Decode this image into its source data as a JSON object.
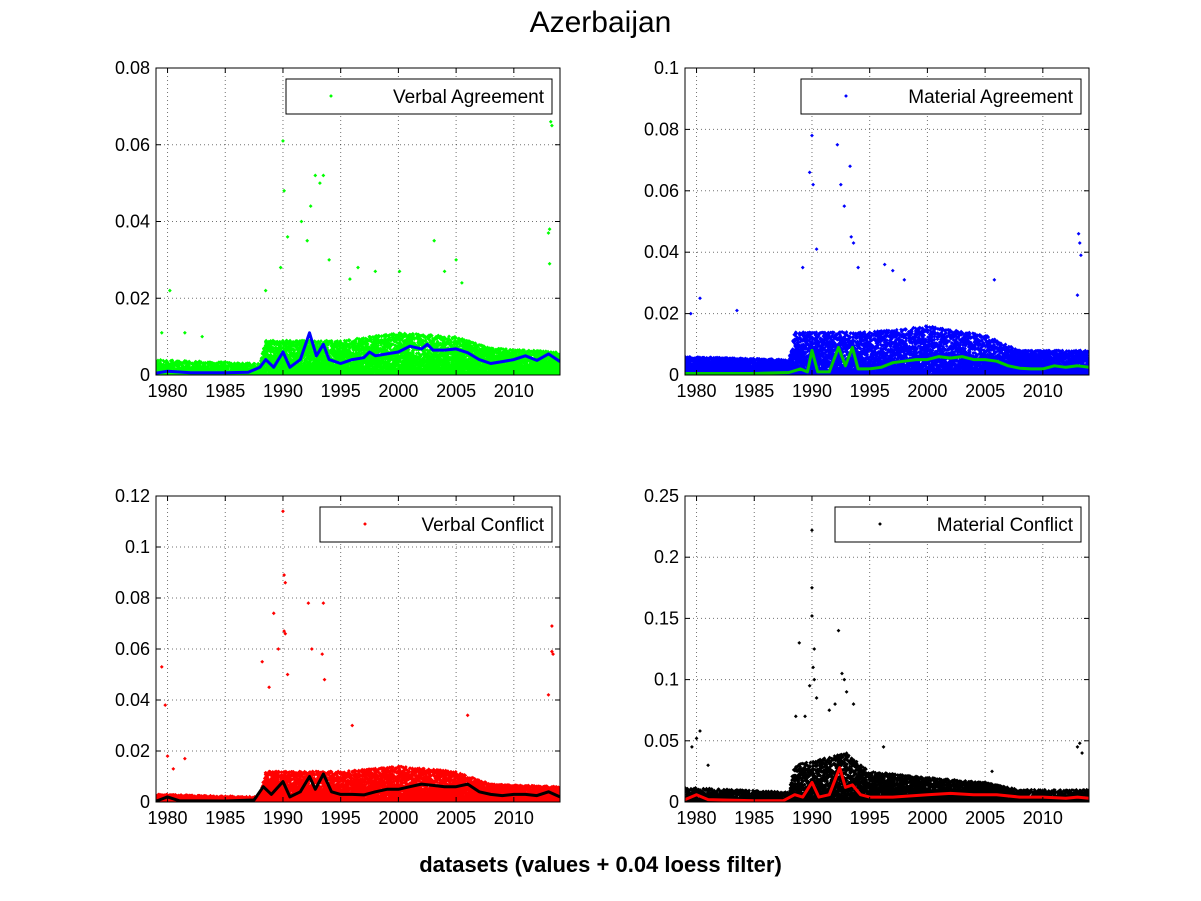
{
  "figure": {
    "title": "Azerbaijan",
    "footer": "datasets (values + 0.04 loess filter)"
  },
  "chart_data": [
    {
      "type": "scatter",
      "legend": "Verbal Agreement",
      "legend_placement": "top-right",
      "grid": true,
      "xlim": [
        1979,
        2014
      ],
      "ylim": [
        0,
        0.08
      ],
      "xticks": [
        1980,
        1985,
        1990,
        1995,
        2000,
        2005,
        2010
      ],
      "yticks": [
        0,
        0.02,
        0.04,
        0.06,
        0.08
      ],
      "ytick_labels": [
        "0",
        "0.02",
        "0.04",
        "0.06",
        "0.08"
      ],
      "marker_color": "#00ff00",
      "smooth_color": "#0000ff",
      "background_level": [
        [
          1979,
          0.004
        ],
        [
          1988,
          0.003
        ],
        [
          1988.5,
          0.009
        ],
        [
          1995,
          0.009
        ],
        [
          2000,
          0.011
        ],
        [
          2005,
          0.01
        ],
        [
          2008,
          0.007
        ],
        [
          2014,
          0.006
        ]
      ],
      "outliers": [
        [
          1979.5,
          0.011
        ],
        [
          1980.2,
          0.022
        ],
        [
          1981.5,
          0.011
        ],
        [
          1983,
          0.01
        ],
        [
          1988.5,
          0.022
        ],
        [
          1989.8,
          0.028
        ],
        [
          1990,
          0.061
        ],
        [
          1990.1,
          0.048
        ],
        [
          1990.4,
          0.036
        ],
        [
          1991.6,
          0.04
        ],
        [
          1992.1,
          0.035
        ],
        [
          1992.4,
          0.044
        ],
        [
          1992.8,
          0.052
        ],
        [
          1993.2,
          0.05
        ],
        [
          1993.5,
          0.052
        ],
        [
          1994.0,
          0.03
        ],
        [
          1995.8,
          0.025
        ],
        [
          1996.5,
          0.028
        ],
        [
          1998.0,
          0.027
        ],
        [
          2000.1,
          0.027
        ],
        [
          2003.1,
          0.035
        ],
        [
          2004.0,
          0.027
        ],
        [
          2005.0,
          0.03
        ],
        [
          2005.5,
          0.024
        ],
        [
          2013.0,
          0.037
        ],
        [
          2013.1,
          0.038
        ],
        [
          2013.2,
          0.066
        ],
        [
          2013.3,
          0.065
        ],
        [
          2013.1,
          0.029
        ]
      ],
      "smooth": [
        [
          1979,
          0.0005
        ],
        [
          1980,
          0.001
        ],
        [
          1982,
          0.0006
        ],
        [
          1985,
          0.0006
        ],
        [
          1987,
          0.0007
        ],
        [
          1988,
          0.002
        ],
        [
          1988.5,
          0.004
        ],
        [
          1989.2,
          0.002
        ],
        [
          1990,
          0.006
        ],
        [
          1990.6,
          0.002
        ],
        [
          1991.5,
          0.004
        ],
        [
          1992.3,
          0.011
        ],
        [
          1992.9,
          0.005
        ],
        [
          1993.5,
          0.008
        ],
        [
          1994,
          0.004
        ],
        [
          1995,
          0.003
        ],
        [
          1996,
          0.004
        ],
        [
          1997,
          0.0045
        ],
        [
          1997.5,
          0.006
        ],
        [
          1998,
          0.005
        ],
        [
          1999,
          0.0055
        ],
        [
          2000,
          0.006
        ],
        [
          2001,
          0.0075
        ],
        [
          2002,
          0.0068
        ],
        [
          2002.5,
          0.008
        ],
        [
          2003,
          0.0065
        ],
        [
          2004,
          0.0065
        ],
        [
          2005,
          0.0068
        ],
        [
          2006,
          0.0058
        ],
        [
          2007,
          0.004
        ],
        [
          2008,
          0.003
        ],
        [
          2009,
          0.0035
        ],
        [
          2010,
          0.004
        ],
        [
          2011,
          0.005
        ],
        [
          2012,
          0.0038
        ],
        [
          2013,
          0.0055
        ],
        [
          2014,
          0.0035
        ]
      ]
    },
    {
      "type": "scatter",
      "legend": "Material Agreement",
      "legend_placement": "top-right",
      "grid": true,
      "xlim": [
        1979,
        2014
      ],
      "ylim": [
        0,
        0.1
      ],
      "xticks": [
        1980,
        1985,
        1990,
        1995,
        2000,
        2005,
        2010
      ],
      "yticks": [
        0,
        0.02,
        0.04,
        0.06,
        0.08,
        0.1
      ],
      "ytick_labels": [
        "0",
        "0.02",
        "0.04",
        "0.06",
        "0.08",
        "0.1"
      ],
      "marker_color": "#0000ff",
      "smooth_color": "#00cc00",
      "background_level": [
        [
          1979,
          0.006
        ],
        [
          1988,
          0.005
        ],
        [
          1988.5,
          0.014
        ],
        [
          1995,
          0.014
        ],
        [
          2000,
          0.016
        ],
        [
          2005,
          0.013
        ],
        [
          2008,
          0.008
        ],
        [
          2014,
          0.008
        ]
      ],
      "outliers": [
        [
          1979.5,
          0.02
        ],
        [
          1980.3,
          0.025
        ],
        [
          1983.5,
          0.021
        ],
        [
          1989.2,
          0.035
        ],
        [
          1989.8,
          0.066
        ],
        [
          1990.0,
          0.078
        ],
        [
          1990.1,
          0.062
        ],
        [
          1990.4,
          0.041
        ],
        [
          1992.2,
          0.075
        ],
        [
          1992.5,
          0.062
        ],
        [
          1992.8,
          0.055
        ],
        [
          1993.3,
          0.068
        ],
        [
          1993.4,
          0.045
        ],
        [
          1993.6,
          0.043
        ],
        [
          1994.0,
          0.035
        ],
        [
          1996.3,
          0.036
        ],
        [
          1997.0,
          0.034
        ],
        [
          1998.0,
          0.031
        ],
        [
          2005.8,
          0.031
        ],
        [
          2013.1,
          0.046
        ],
        [
          2013.2,
          0.043
        ],
        [
          2013.3,
          0.039
        ],
        [
          2013.0,
          0.026
        ]
      ],
      "smooth": [
        [
          1979,
          0.0005
        ],
        [
          1985,
          0.0005
        ],
        [
          1988,
          0.0008
        ],
        [
          1989,
          0.002
        ],
        [
          1989.6,
          0.001
        ],
        [
          1990,
          0.008
        ],
        [
          1990.5,
          0.001
        ],
        [
          1991.5,
          0.001
        ],
        [
          1992.3,
          0.009
        ],
        [
          1992.9,
          0.003
        ],
        [
          1993.5,
          0.009
        ],
        [
          1994,
          0.002
        ],
        [
          1995,
          0.002
        ],
        [
          1996,
          0.0025
        ],
        [
          1997,
          0.004
        ],
        [
          1998,
          0.0045
        ],
        [
          1999,
          0.005
        ],
        [
          2000,
          0.005
        ],
        [
          2001,
          0.006
        ],
        [
          2002,
          0.0055
        ],
        [
          2003,
          0.006
        ],
        [
          2004,
          0.005
        ],
        [
          2005,
          0.005
        ],
        [
          2006,
          0.0045
        ],
        [
          2007,
          0.003
        ],
        [
          2008,
          0.0022
        ],
        [
          2009,
          0.002
        ],
        [
          2010,
          0.002
        ],
        [
          2011,
          0.003
        ],
        [
          2012,
          0.0025
        ],
        [
          2013,
          0.003
        ],
        [
          2014,
          0.0025
        ]
      ]
    },
    {
      "type": "scatter",
      "legend": "Verbal Conflict",
      "legend_placement": "top-right",
      "grid": true,
      "xlim": [
        1979,
        2014
      ],
      "ylim": [
        0,
        0.12
      ],
      "xticks": [
        1980,
        1985,
        1990,
        1995,
        2000,
        2005,
        2010
      ],
      "yticks": [
        0,
        0.02,
        0.04,
        0.06,
        0.08,
        0.1,
        0.12
      ],
      "ytick_labels": [
        "0",
        "0.02",
        "0.04",
        "0.06",
        "0.08",
        "0.1",
        "0.12"
      ],
      "marker_color": "#ff0000",
      "smooth_color": "#000000",
      "background_level": [
        [
          1979,
          0.003
        ],
        [
          1988,
          0.002
        ],
        [
          1988.5,
          0.012
        ],
        [
          1995,
          0.012
        ],
        [
          2000,
          0.014
        ],
        [
          2005,
          0.012
        ],
        [
          2008,
          0.007
        ],
        [
          2014,
          0.006
        ]
      ],
      "outliers": [
        [
          1979.5,
          0.053
        ],
        [
          1979.8,
          0.038
        ],
        [
          1980.0,
          0.018
        ],
        [
          1980.5,
          0.013
        ],
        [
          1981.5,
          0.017
        ],
        [
          1988.2,
          0.055
        ],
        [
          1988.8,
          0.045
        ],
        [
          1989.2,
          0.074
        ],
        [
          1989.6,
          0.06
        ],
        [
          1990.0,
          0.114
        ],
        [
          1990.1,
          0.089
        ],
        [
          1990.2,
          0.086
        ],
        [
          1990.1,
          0.067
        ],
        [
          1990.2,
          0.066
        ],
        [
          1990.4,
          0.05
        ],
        [
          1992.2,
          0.078
        ],
        [
          1992.5,
          0.06
        ],
        [
          1993.5,
          0.078
        ],
        [
          1993.4,
          0.058
        ],
        [
          1993.6,
          0.048
        ],
        [
          1996.0,
          0.03
        ],
        [
          2006.0,
          0.034
        ],
        [
          2013.0,
          0.042
        ],
        [
          2013.3,
          0.069
        ],
        [
          2013.3,
          0.059
        ],
        [
          2013.4,
          0.058
        ]
      ],
      "smooth": [
        [
          1979,
          0.0003
        ],
        [
          1980,
          0.002
        ],
        [
          1981,
          0.0005
        ],
        [
          1985,
          0.0004
        ],
        [
          1987.5,
          0.0008
        ],
        [
          1988.3,
          0.006
        ],
        [
          1989,
          0.003
        ],
        [
          1990,
          0.008
        ],
        [
          1990.6,
          0.002
        ],
        [
          1991.5,
          0.004
        ],
        [
          1992.3,
          0.01
        ],
        [
          1992.8,
          0.005
        ],
        [
          1993.5,
          0.011
        ],
        [
          1994.2,
          0.004
        ],
        [
          1995,
          0.003
        ],
        [
          1996,
          0.003
        ],
        [
          1997,
          0.0028
        ],
        [
          1998,
          0.004
        ],
        [
          1999,
          0.005
        ],
        [
          2000,
          0.005
        ],
        [
          2001,
          0.006
        ],
        [
          2002,
          0.007
        ],
        [
          2003,
          0.0065
        ],
        [
          2004,
          0.006
        ],
        [
          2005,
          0.006
        ],
        [
          2006,
          0.007
        ],
        [
          2007,
          0.004
        ],
        [
          2008,
          0.003
        ],
        [
          2009,
          0.0025
        ],
        [
          2010,
          0.003
        ],
        [
          2011,
          0.003
        ],
        [
          2012,
          0.0025
        ],
        [
          2013,
          0.004
        ],
        [
          2014,
          0.002
        ]
      ]
    },
    {
      "type": "scatter",
      "legend": "Material Conflict",
      "legend_placement": "top-right",
      "grid": true,
      "xlim": [
        1979,
        2014
      ],
      "ylim": [
        0,
        0.25
      ],
      "xticks": [
        1980,
        1985,
        1990,
        1995,
        2000,
        2005,
        2010
      ],
      "yticks": [
        0,
        0.05,
        0.1,
        0.15,
        0.2,
        0.25
      ],
      "ytick_labels": [
        "0",
        "0.05",
        "0.1",
        "0.15",
        "0.2",
        "0.25"
      ],
      "marker_color": "#000000",
      "smooth_color": "#ff0000",
      "background_level": [
        [
          1979,
          0.012
        ],
        [
          1988,
          0.008
        ],
        [
          1988.5,
          0.03
        ],
        [
          1993,
          0.04
        ],
        [
          1995,
          0.025
        ],
        [
          2000,
          0.02
        ],
        [
          2005,
          0.016
        ],
        [
          2008,
          0.01
        ],
        [
          2014,
          0.01
        ]
      ],
      "outliers": [
        [
          1979.6,
          0.045
        ],
        [
          1980.0,
          0.052
        ],
        [
          1980.3,
          0.058
        ],
        [
          1981,
          0.03
        ],
        [
          1988.6,
          0.07
        ],
        [
          1988.9,
          0.13
        ],
        [
          1989.4,
          0.07
        ],
        [
          1989.8,
          0.095
        ],
        [
          1990.0,
          0.222
        ],
        [
          1990.0,
          0.175
        ],
        [
          1990.0,
          0.152
        ],
        [
          1990.1,
          0.11
        ],
        [
          1990.2,
          0.1
        ],
        [
          1990.2,
          0.125
        ],
        [
          1990.4,
          0.085
        ],
        [
          1991.5,
          0.075
        ],
        [
          1992.0,
          0.08
        ],
        [
          1992.3,
          0.14
        ],
        [
          1992.6,
          0.105
        ],
        [
          1992.8,
          0.1
        ],
        [
          1993.0,
          0.09
        ],
        [
          1993.6,
          0.08
        ],
        [
          1996.2,
          0.045
        ],
        [
          2005.6,
          0.025
        ],
        [
          2013.0,
          0.045
        ],
        [
          2013.2,
          0.048
        ],
        [
          2013.4,
          0.04
        ]
      ],
      "smooth": [
        [
          1979,
          0.002
        ],
        [
          1980,
          0.006
        ],
        [
          1981,
          0.002
        ],
        [
          1985,
          0.001
        ],
        [
          1987.5,
          0.001
        ],
        [
          1988.5,
          0.006
        ],
        [
          1989.2,
          0.004
        ],
        [
          1990,
          0.016
        ],
        [
          1990.6,
          0.004
        ],
        [
          1991.5,
          0.006
        ],
        [
          1992.4,
          0.028
        ],
        [
          1992.9,
          0.012
        ],
        [
          1993.5,
          0.014
        ],
        [
          1994.2,
          0.006
        ],
        [
          1995,
          0.004
        ],
        [
          1997,
          0.004
        ],
        [
          2000,
          0.006
        ],
        [
          2002,
          0.007
        ],
        [
          2004,
          0.006
        ],
        [
          2006,
          0.006
        ],
        [
          2008,
          0.004
        ],
        [
          2010,
          0.004
        ],
        [
          2012,
          0.003
        ],
        [
          2013,
          0.004
        ],
        [
          2014,
          0.003
        ]
      ]
    }
  ]
}
